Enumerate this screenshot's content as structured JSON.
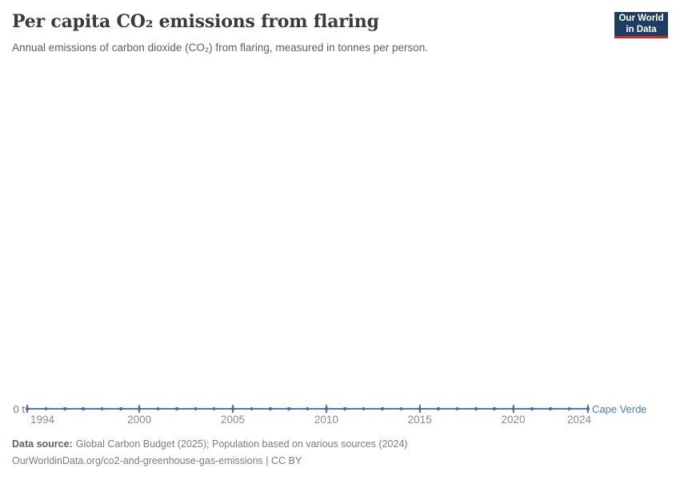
{
  "header": {
    "title": "Per capita CO₂ emissions from flaring",
    "subtitle": "Annual emissions of carbon dioxide (CO₂) from flaring, measured in tonnes per person.",
    "logo": {
      "line1": "Our World",
      "line2": "in Data"
    }
  },
  "axis": {
    "zero_label": "0 t",
    "series_end_label": "Cape Verde"
  },
  "chart_data": {
    "type": "line",
    "title": "Per capita CO₂ emissions from flaring",
    "xlabel": "",
    "ylabel": "",
    "grid": false,
    "legend_position": "end-of-line",
    "x_range": [
      1994,
      2024
    ],
    "ylim": [
      0,
      0
    ],
    "x_ticks": [
      1994,
      2000,
      2005,
      2010,
      2015,
      2020,
      2024
    ],
    "y_tick_labels": [
      "0 t"
    ],
    "series": [
      {
        "name": "Cape Verde",
        "color": "#5577aa",
        "x": [
          1994,
          1995,
          1996,
          1997,
          1998,
          1999,
          2000,
          2001,
          2002,
          2003,
          2004,
          2005,
          2006,
          2007,
          2008,
          2009,
          2010,
          2011,
          2012,
          2013,
          2014,
          2015,
          2016,
          2017,
          2018,
          2019,
          2020,
          2021,
          2022,
          2023,
          2024
        ],
        "values": [
          0,
          0,
          0,
          0,
          0,
          0,
          0,
          0,
          0,
          0,
          0,
          0,
          0,
          0,
          0,
          0,
          0,
          0,
          0,
          0,
          0,
          0,
          0,
          0,
          0,
          0,
          0,
          0,
          0,
          0,
          0
        ]
      }
    ]
  },
  "footer": {
    "source_label": "Data source:",
    "source_text": "Global Carbon Budget (2025); Population based on various sources (2024)",
    "license_text": "OurWorldinData.org/co2-and-greenhouse-gas-emissions | CC BY"
  },
  "colors": {
    "line": "#5577aa",
    "marker": "#47699e",
    "series_label": "#4878ba",
    "logo_bg": "#1d3d63",
    "logo_accent": "#d32e1b"
  }
}
